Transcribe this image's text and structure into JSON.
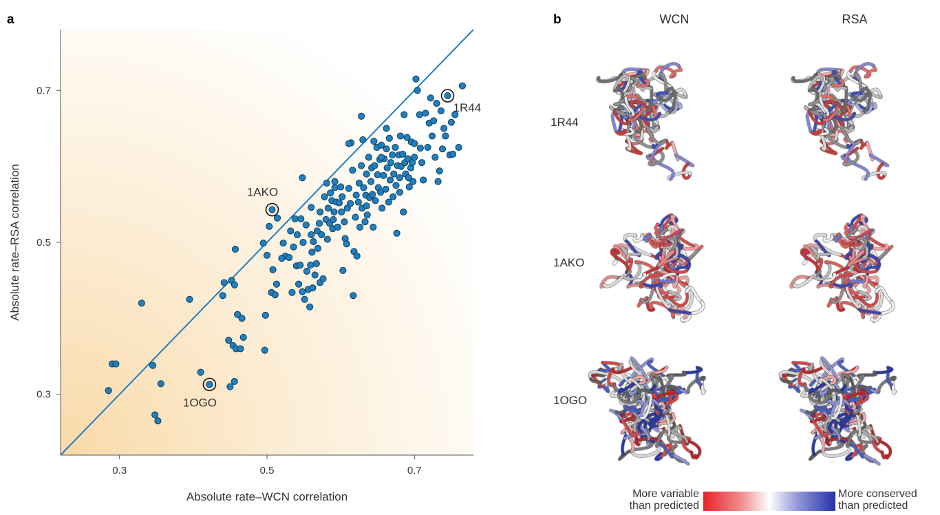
{
  "panel_a": {
    "label": "a"
  },
  "panel_b": {
    "label": "b",
    "columns": [
      "WCN",
      "RSA"
    ],
    "rows": [
      "1R44",
      "1AKO",
      "1OGO"
    ],
    "legend": {
      "left_line1": "More variable",
      "left_line2": "than predicted",
      "right_line1": "More conserved",
      "right_line2": "than predicted",
      "colors": [
        "#e8222a",
        "#ffffff",
        "#2433a8"
      ]
    }
  },
  "chart_data": {
    "type": "scatter",
    "xlabel": "Absolute rate–WCN correlation",
    "ylabel": "Absolute rate–RSA correlation",
    "xlim": [
      0.22,
      0.78
    ],
    "ylim": [
      0.22,
      0.78
    ],
    "xticks": [
      0.3,
      0.5,
      0.7
    ],
    "yticks": [
      0.3,
      0.5,
      0.7
    ],
    "xtick_labels": [
      "0.3",
      "0.5",
      "0.7"
    ],
    "ytick_labels": [
      "0.3",
      "0.5",
      "0.7"
    ],
    "diagonal_line": true,
    "point_color": "#1f7fbf",
    "highlighted": [
      {
        "label": "1R44",
        "x": 0.745,
        "y": 0.693
      },
      {
        "label": "1AKO",
        "x": 0.507,
        "y": 0.543
      },
      {
        "label": "1OGO",
        "x": 0.422,
        "y": 0.313
      }
    ],
    "points": [
      [
        0.285,
        0.305
      ],
      [
        0.29,
        0.34
      ],
      [
        0.295,
        0.34
      ],
      [
        0.33,
        0.42
      ],
      [
        0.345,
        0.338
      ],
      [
        0.348,
        0.273
      ],
      [
        0.352,
        0.265
      ],
      [
        0.356,
        0.314
      ],
      [
        0.395,
        0.425
      ],
      [
        0.41,
        0.329
      ],
      [
        0.422,
        0.313
      ],
      [
        0.44,
        0.43
      ],
      [
        0.442,
        0.447
      ],
      [
        0.448,
        0.371
      ],
      [
        0.45,
        0.31
      ],
      [
        0.452,
        0.45
      ],
      [
        0.454,
        0.364
      ],
      [
        0.456,
        0.444
      ],
      [
        0.456,
        0.317
      ],
      [
        0.458,
        0.36
      ],
      [
        0.457,
        0.491
      ],
      [
        0.46,
        0.405
      ],
      [
        0.464,
        0.36
      ],
      [
        0.466,
        0.4
      ],
      [
        0.468,
        0.375
      ],
      [
        0.495,
        0.499
      ],
      [
        0.497,
        0.358
      ],
      [
        0.498,
        0.404
      ],
      [
        0.5,
        0.483
      ],
      [
        0.503,
        0.521
      ],
      [
        0.506,
        0.434
      ],
      [
        0.507,
        0.543
      ],
      [
        0.508,
        0.464
      ],
      [
        0.511,
        0.431
      ],
      [
        0.513,
        0.445
      ],
      [
        0.514,
        0.532
      ],
      [
        0.522,
        0.499
      ],
      [
        0.525,
        0.482
      ],
      [
        0.53,
        0.48
      ],
      [
        0.532,
        0.515
      ],
      [
        0.534,
        0.434
      ],
      [
        0.536,
        0.494
      ],
      [
        0.538,
        0.531
      ],
      [
        0.54,
        0.469
      ],
      [
        0.541,
        0.51
      ],
      [
        0.543,
        0.445
      ],
      [
        0.545,
        0.47
      ],
      [
        0.546,
        0.531
      ],
      [
        0.548,
        0.435
      ],
      [
        0.549,
        0.5
      ],
      [
        0.551,
        0.425
      ],
      [
        0.553,
        0.523
      ],
      [
        0.554,
        0.462
      ],
      [
        0.556,
        0.438
      ],
      [
        0.558,
        0.415
      ],
      [
        0.559,
        0.47
      ],
      [
        0.56,
        0.51
      ],
      [
        0.561,
        0.487
      ],
      [
        0.562,
        0.44
      ],
      [
        0.563,
        0.501
      ],
      [
        0.565,
        0.457
      ],
      [
        0.567,
        0.472
      ],
      [
        0.569,
        0.492
      ],
      [
        0.571,
        0.525
      ],
      [
        0.572,
        0.447
      ],
      [
        0.574,
        0.51
      ],
      [
        0.576,
        0.452
      ],
      [
        0.578,
        0.56
      ],
      [
        0.58,
        0.53
      ],
      [
        0.581,
        0.578
      ],
      [
        0.582,
        0.504
      ],
      [
        0.583,
        0.545
      ],
      [
        0.585,
        0.525
      ],
      [
        0.586,
        0.565
      ],
      [
        0.588,
        0.555
      ],
      [
        0.589,
        0.518
      ],
      [
        0.591,
        0.54
      ],
      [
        0.592,
        0.572
      ],
      [
        0.594,
        0.553
      ],
      [
        0.596,
        0.52
      ],
      [
        0.598,
        0.552
      ],
      [
        0.6,
        0.573
      ],
      [
        0.601,
        0.54
      ],
      [
        0.603,
        0.463
      ],
      [
        0.605,
        0.527
      ],
      [
        0.606,
        0.505
      ],
      [
        0.608,
        0.498
      ],
      [
        0.609,
        0.545
      ],
      [
        0.611,
        0.571
      ],
      [
        0.613,
        0.551
      ],
      [
        0.614,
        0.631
      ],
      [
        0.616,
        0.595
      ],
      [
        0.617,
        0.43
      ],
      [
        0.618,
        0.488
      ],
      [
        0.62,
        0.533
      ],
      [
        0.621,
        0.562
      ],
      [
        0.622,
        0.482
      ],
      [
        0.624,
        0.553
      ],
      [
        0.625,
        0.578
      ],
      [
        0.626,
        0.52
      ],
      [
        0.628,
        0.601
      ],
      [
        0.629,
        0.545
      ],
      [
        0.63,
        0.635
      ],
      [
        0.631,
        0.572
      ],
      [
        0.633,
        0.527
      ],
      [
        0.634,
        0.562
      ],
      [
        0.635,
        0.59
      ],
      [
        0.636,
        0.536
      ],
      [
        0.638,
        0.612
      ],
      [
        0.639,
        0.559
      ],
      [
        0.641,
        0.58
      ],
      [
        0.642,
        0.598
      ],
      [
        0.643,
        0.563
      ],
      [
        0.644,
        0.52
      ],
      [
        0.646,
        0.601
      ],
      [
        0.647,
        0.555
      ],
      [
        0.649,
        0.625
      ],
      [
        0.65,
        0.589
      ],
      [
        0.651,
        0.572
      ],
      [
        0.653,
        0.609
      ],
      [
        0.654,
        0.566
      ],
      [
        0.655,
        0.628
      ],
      [
        0.656,
        0.545
      ],
      [
        0.658,
        0.588
      ],
      [
        0.659,
        0.61
      ],
      [
        0.661,
        0.57
      ],
      [
        0.662,
        0.623
      ],
      [
        0.663,
        0.598
      ],
      [
        0.665,
        0.553
      ],
      [
        0.666,
        0.637
      ],
      [
        0.667,
        0.582
      ],
      [
        0.668,
        0.605
      ],
      [
        0.67,
        0.615
      ],
      [
        0.671,
        0.56
      ],
      [
        0.672,
        0.59
      ],
      [
        0.674,
        0.625
      ],
      [
        0.675,
        0.575
      ],
      [
        0.676,
        0.512
      ],
      [
        0.677,
        0.601
      ],
      [
        0.679,
        0.615
      ],
      [
        0.68,
        0.585
      ],
      [
        0.681,
        0.64
      ],
      [
        0.682,
        0.6
      ],
      [
        0.684,
        0.616
      ],
      [
        0.685,
        0.54
      ],
      [
        0.686,
        0.668
      ],
      [
        0.687,
        0.605
      ],
      [
        0.688,
        0.59
      ],
      [
        0.69,
        0.638
      ],
      [
        0.691,
        0.61
      ],
      [
        0.692,
        0.585
      ],
      [
        0.693,
        0.573
      ],
      [
        0.695,
        0.598
      ],
      [
        0.696,
        0.632
      ],
      [
        0.697,
        0.605
      ],
      [
        0.698,
        0.58
      ],
      [
        0.7,
        0.612
      ],
      [
        0.702,
        0.715
      ],
      [
        0.704,
        0.7
      ],
      [
        0.707,
        0.668
      ],
      [
        0.71,
        0.605
      ],
      [
        0.712,
        0.582
      ],
      [
        0.715,
        0.67
      ],
      [
        0.718,
        0.625
      ],
      [
        0.72,
        0.657
      ],
      [
        0.722,
        0.69
      ],
      [
        0.724,
        0.64
      ],
      [
        0.726,
        0.66
      ],
      [
        0.728,
        0.612
      ],
      [
        0.73,
        0.683
      ],
      [
        0.732,
        0.58
      ],
      [
        0.734,
        0.594
      ],
      [
        0.736,
        0.673
      ],
      [
        0.738,
        0.623
      ],
      [
        0.74,
        0.65
      ],
      [
        0.742,
        0.64
      ],
      [
        0.745,
        0.693
      ],
      [
        0.748,
        0.615
      ],
      [
        0.75,
        0.658
      ],
      [
        0.752,
        0.616
      ],
      [
        0.755,
        0.668
      ],
      [
        0.76,
        0.625
      ],
      [
        0.765,
        0.706
      ],
      [
        0.628,
        0.666
      ],
      [
        0.611,
        0.63
      ],
      [
        0.592,
        0.58
      ],
      [
        0.568,
        0.515
      ],
      [
        0.548,
        0.585
      ],
      [
        0.52,
        0.479
      ],
      [
        0.56,
        0.546
      ],
      [
        0.572,
        0.54
      ],
      [
        0.645,
        0.633
      ],
      [
        0.662,
        0.65
      ],
      [
        0.68,
        0.566
      ],
      [
        0.7,
        0.63
      ],
      [
        0.708,
        0.624
      ],
      [
        0.59,
        0.53
      ],
      [
        0.602,
        0.56
      ],
      [
        0.635,
        0.548
      ],
      [
        0.655,
        0.612
      ]
    ]
  }
}
